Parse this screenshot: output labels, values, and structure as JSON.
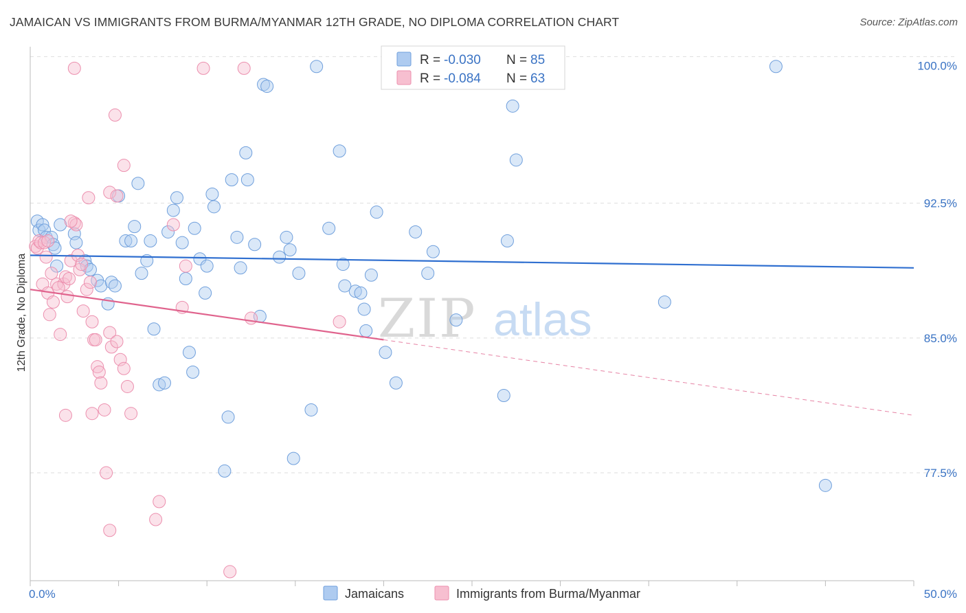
{
  "title": "JAMAICAN VS IMMIGRANTS FROM BURMA/MYANMAR 12TH GRADE, NO DIPLOMA CORRELATION CHART",
  "source": "Source: ZipAtlas.com",
  "watermark": {
    "zip": "ZIP",
    "atlas": "atlas"
  },
  "colors": {
    "blue_fill": "#aecbf0",
    "blue_stroke": "#6f9fdc",
    "blue_line": "#2f6fd0",
    "pink_fill": "#f7bfd0",
    "pink_stroke": "#ec8fae",
    "pink_line": "#e0638d",
    "value_text": "#3a73c4",
    "grid": "#dddddd"
  },
  "legend_top": {
    "rows": [
      {
        "r_label": "R =",
        "r_value": "-0.030",
        "n_label": "N =",
        "n_value": "85",
        "color": "blue"
      },
      {
        "r_label": "R =",
        "r_value": "-0.084",
        "n_label": "N =",
        "n_value": "63",
        "color": "pink"
      }
    ]
  },
  "legend_bottom": [
    "Jamaicans",
    "Immigrants from Burma/Myanmar"
  ],
  "chart_data": {
    "type": "scatter",
    "title": "JAMAICAN VS IMMIGRANTS FROM BURMA/MYANMAR 12TH GRADE, NO DIPLOMA CORRELATION CHART",
    "xlabel": "",
    "ylabel": "12th Grade, No Diploma",
    "xlim": [
      0,
      50
    ],
    "ylim": [
      71.5,
      101.2
    ],
    "x_tick_labels": [
      "0.0%",
      "50.0%"
    ],
    "y_ticks": [
      77.5,
      85.0,
      92.5,
      100.0
    ],
    "y_tick_labels": [
      "77.5%",
      "85.0%",
      "92.5%",
      "100.0%"
    ],
    "grid": true,
    "legend_position": "top-center",
    "series": [
      {
        "name": "Jamaicans",
        "color": "blue",
        "R": -0.03,
        "N": 85,
        "trend": {
          "x": [
            0,
            50
          ],
          "y": [
            89.6,
            88.9
          ]
        },
        "points": [
          [
            0.4,
            91.5
          ],
          [
            0.5,
            91.0
          ],
          [
            0.7,
            91.3
          ],
          [
            0.8,
            91.0
          ],
          [
            0.9,
            90.6
          ],
          [
            1.2,
            90.6
          ],
          [
            1.3,
            90.2
          ],
          [
            1.4,
            90.0
          ],
          [
            1.5,
            89.0
          ],
          [
            1.7,
            91.3
          ],
          [
            2.5,
            90.8
          ],
          [
            2.6,
            90.3
          ],
          [
            3.1,
            89.3
          ],
          [
            3.2,
            89.0
          ],
          [
            3.4,
            88.8
          ],
          [
            3.8,
            88.2
          ],
          [
            4.0,
            87.9
          ],
          [
            4.4,
            86.9
          ],
          [
            4.6,
            88.1
          ],
          [
            4.8,
            87.9
          ],
          [
            5.0,
            92.9
          ],
          [
            5.4,
            90.4
          ],
          [
            5.7,
            90.4
          ],
          [
            5.9,
            91.2
          ],
          [
            6.1,
            93.6
          ],
          [
            6.3,
            88.6
          ],
          [
            6.6,
            89.3
          ],
          [
            6.8,
            90.4
          ],
          [
            7.0,
            85.5
          ],
          [
            7.3,
            82.4
          ],
          [
            7.6,
            82.5
          ],
          [
            7.8,
            90.9
          ],
          [
            8.1,
            92.1
          ],
          [
            8.3,
            92.8
          ],
          [
            8.6,
            90.3
          ],
          [
            8.8,
            88.3
          ],
          [
            9.0,
            84.2
          ],
          [
            9.2,
            83.1
          ],
          [
            9.3,
            91.1
          ],
          [
            9.6,
            89.4
          ],
          [
            9.9,
            87.5
          ],
          [
            10.0,
            89.0
          ],
          [
            10.3,
            93.0
          ],
          [
            10.4,
            92.3
          ],
          [
            11.0,
            77.6
          ],
          [
            11.2,
            80.6
          ],
          [
            11.4,
            93.8
          ],
          [
            11.7,
            90.6
          ],
          [
            11.9,
            88.9
          ],
          [
            12.2,
            95.3
          ],
          [
            12.3,
            93.8
          ],
          [
            12.7,
            90.2
          ],
          [
            13.0,
            86.2
          ],
          [
            13.2,
            99.1
          ],
          [
            13.4,
            99.0
          ],
          [
            14.1,
            89.5
          ],
          [
            14.5,
            90.6
          ],
          [
            14.7,
            89.9
          ],
          [
            14.9,
            78.3
          ],
          [
            15.2,
            88.6
          ],
          [
            15.9,
            81.0
          ],
          [
            16.2,
            100.1
          ],
          [
            16.9,
            91.1
          ],
          [
            17.5,
            95.4
          ],
          [
            17.7,
            89.1
          ],
          [
            17.8,
            87.9
          ],
          [
            18.4,
            87.6
          ],
          [
            18.7,
            87.5
          ],
          [
            18.9,
            86.6
          ],
          [
            19.0,
            85.4
          ],
          [
            19.3,
            88.5
          ],
          [
            19.6,
            92.0
          ],
          [
            20.1,
            84.2
          ],
          [
            20.7,
            82.5
          ],
          [
            21.8,
            90.9
          ],
          [
            22.5,
            88.6
          ],
          [
            22.8,
            89.8
          ],
          [
            24.1,
            86.0
          ],
          [
            26.8,
            81.8
          ],
          [
            27.0,
            90.4
          ],
          [
            27.3,
            97.9
          ],
          [
            27.5,
            94.9
          ],
          [
            35.9,
            87.0
          ],
          [
            42.2,
            100.1
          ],
          [
            45.0,
            76.8
          ]
        ]
      },
      {
        "name": "Immigrants from Burma/Myanmar",
        "color": "pink",
        "R": -0.084,
        "N": 63,
        "trend": {
          "x": [
            0,
            20
          ],
          "y": [
            87.7,
            84.9
          ]
        },
        "trend_extension": {
          "x": [
            20,
            50
          ],
          "y": [
            84.9,
            80.7
          ]
        },
        "points": [
          [
            0.3,
            90.1
          ],
          [
            0.4,
            90.0
          ],
          [
            0.5,
            90.4
          ],
          [
            0.6,
            90.3
          ],
          [
            0.7,
            88.0
          ],
          [
            0.8,
            90.3
          ],
          [
            0.9,
            89.5
          ],
          [
            1.0,
            87.5
          ],
          [
            1.1,
            86.3
          ],
          [
            1.3,
            87.0
          ],
          [
            1.5,
            88.0
          ],
          [
            1.7,
            85.2
          ],
          [
            1.9,
            88.0
          ],
          [
            2.0,
            88.4
          ],
          [
            2.1,
            87.3
          ],
          [
            2.2,
            88.3
          ],
          [
            2.3,
            89.3
          ],
          [
            2.5,
            91.4
          ],
          [
            2.6,
            91.3
          ],
          [
            2.7,
            89.6
          ],
          [
            2.8,
            88.8
          ],
          [
            2.9,
            89.1
          ],
          [
            3.0,
            86.5
          ],
          [
            3.2,
            87.7
          ],
          [
            3.4,
            88.1
          ],
          [
            3.5,
            85.9
          ],
          [
            3.6,
            84.9
          ],
          [
            3.7,
            84.9
          ],
          [
            3.8,
            83.4
          ],
          [
            3.9,
            83.1
          ],
          [
            4.0,
            82.5
          ],
          [
            4.2,
            81.0
          ],
          [
            4.5,
            85.3
          ],
          [
            4.6,
            84.5
          ],
          [
            4.9,
            84.8
          ],
          [
            5.1,
            83.8
          ],
          [
            5.3,
            83.3
          ],
          [
            5.5,
            82.3
          ],
          [
            5.7,
            80.8
          ],
          [
            4.3,
            77.5
          ],
          [
            3.5,
            80.8
          ],
          [
            2.0,
            80.7
          ],
          [
            4.8,
            97.4
          ],
          [
            5.3,
            94.6
          ],
          [
            4.5,
            93.1
          ],
          [
            4.9,
            92.9
          ],
          [
            3.3,
            92.8
          ],
          [
            2.3,
            91.5
          ],
          [
            8.1,
            91.3
          ],
          [
            8.8,
            89.0
          ],
          [
            7.3,
            75.9
          ],
          [
            7.1,
            74.9
          ],
          [
            4.5,
            74.3
          ],
          [
            11.3,
            72.0
          ],
          [
            2.5,
            100.0
          ],
          [
            9.8,
            100.0
          ],
          [
            12.1,
            100.0
          ],
          [
            12.5,
            86.1
          ],
          [
            17.5,
            85.9
          ],
          [
            8.6,
            86.7
          ],
          [
            1.0,
            90.4
          ],
          [
            1.2,
            88.6
          ],
          [
            1.6,
            87.8
          ]
        ]
      }
    ]
  }
}
